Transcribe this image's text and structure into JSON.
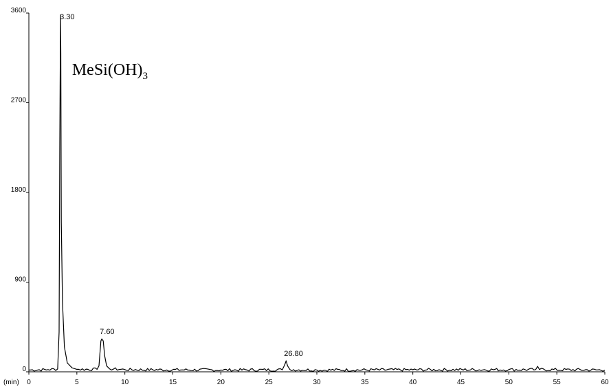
{
  "chart_data": {
    "type": "line",
    "xunit_label": "(min)",
    "xlim": [
      0,
      60
    ],
    "ylim": [
      0,
      3600
    ],
    "x_ticks": [
      0,
      5,
      10,
      15,
      20,
      25,
      30,
      35,
      40,
      45,
      50,
      55,
      60
    ],
    "y_ticks": [
      0,
      900,
      1800,
      2700,
      3600
    ],
    "grid": false,
    "baseline": 20,
    "peaks": [
      {
        "label": "3.30",
        "x": 3.3,
        "y": 3580
      },
      {
        "label": "7.60",
        "x": 7.6,
        "y": 330
      },
      {
        "label": "26.80",
        "x": 26.8,
        "y": 110
      }
    ],
    "annotation": {
      "text": "MeSi(OH)",
      "subscript": "3"
    },
    "series": [
      {
        "x": [
          0,
          2,
          3.0,
          3.15,
          3.22,
          3.28,
          3.3,
          3.33,
          3.38,
          3.5,
          3.7,
          4.0,
          4.5,
          5,
          7.1,
          7.3,
          7.5,
          7.6,
          7.75,
          7.9,
          8.1,
          8.4,
          10,
          20,
          26.4,
          26.65,
          26.8,
          26.95,
          27.2,
          30,
          40,
          50,
          52.8,
          53.0,
          53.2,
          60
        ],
        "y": [
          18,
          22,
          28,
          400,
          2300,
          3300,
          3580,
          3200,
          1500,
          700,
          250,
          90,
          40,
          25,
          25,
          60,
          310,
          330,
          310,
          160,
          60,
          30,
          22,
          18,
          20,
          70,
          110,
          60,
          22,
          18,
          20,
          22,
          22,
          55,
          22,
          18
        ]
      }
    ]
  }
}
